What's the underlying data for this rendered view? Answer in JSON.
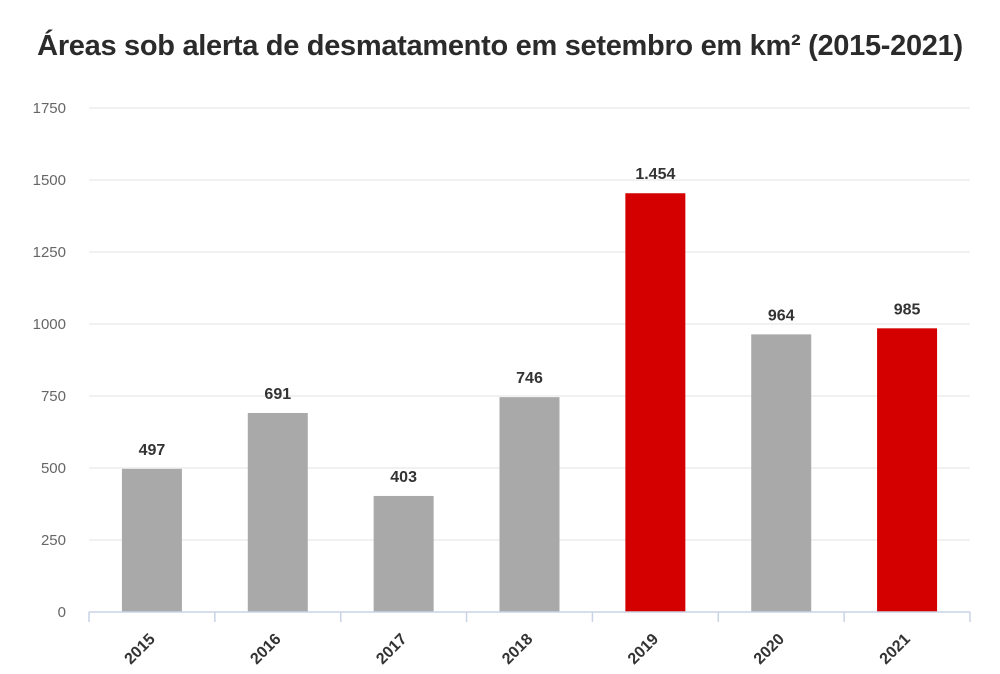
{
  "chart_data": {
    "type": "bar",
    "title": "Áreas sob alerta de desmatamento em setembro em km² (2015-2021)",
    "xlabel": "",
    "ylabel": "",
    "categories": [
      "2015",
      "2016",
      "2017",
      "2018",
      "2019",
      "2020",
      "2021"
    ],
    "values": [
      497,
      691,
      403,
      746,
      1454,
      964,
      985
    ],
    "data_labels": [
      "497",
      "691",
      "403",
      "746",
      "1.454",
      "964",
      "985"
    ],
    "ylim": [
      0,
      1750
    ],
    "yticks": [
      0,
      250,
      500,
      750,
      1000,
      1250,
      1500,
      1750
    ],
    "ytick_labels": [
      "0",
      "250",
      "500",
      "750",
      "1000",
      "1250",
      "1500",
      "1750"
    ],
    "grid": true,
    "legend": "none",
    "colors": {
      "default_bar": "#a9a9a9",
      "highlight_bar": "#d40000",
      "grid": "#e3e3e3",
      "axis": "#c9d3e6"
    },
    "highlighted": [
      "2019",
      "2021"
    ]
  }
}
